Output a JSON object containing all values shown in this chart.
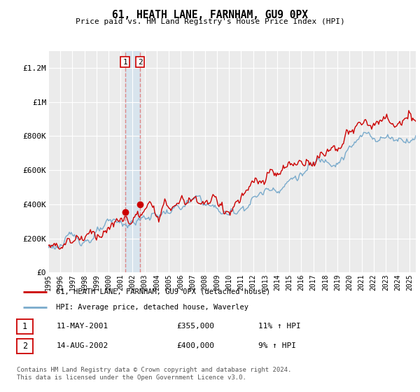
{
  "title": "61, HEATH LANE, FARNHAM, GU9 0PX",
  "subtitle": "Price paid vs. HM Land Registry's House Price Index (HPI)",
  "ylim": [
    0,
    1300000
  ],
  "yticks": [
    0,
    200000,
    400000,
    600000,
    800000,
    1000000,
    1200000
  ],
  "ytick_labels": [
    "£0",
    "£200K",
    "£400K",
    "£600K",
    "£800K",
    "£1M",
    "£1.2M"
  ],
  "background_color": "#ffffff",
  "plot_bg_color": "#ebebeb",
  "grid_color": "#ffffff",
  "legend_line1": "61, HEATH LANE, FARNHAM, GU9 0PX (detached house)",
  "legend_line2": "HPI: Average price, detached house, Waverley",
  "footer1": "Contains HM Land Registry data © Crown copyright and database right 2024.",
  "footer2": "This data is licensed under the Open Government Licence v3.0.",
  "table_row1": [
    "1",
    "11-MAY-2001",
    "£355,000",
    "11% ↑ HPI"
  ],
  "table_row2": [
    "2",
    "14-AUG-2002",
    "£400,000",
    "9% ↑ HPI"
  ],
  "line_color_red": "#cc0000",
  "line_color_blue": "#7aabcc",
  "sale_dot_color": "#cc0000",
  "vline_color": "#dd8888",
  "shade_color": "#cce0f0",
  "x_start_year": 1995,
  "x_end_year": 2025,
  "sale1_year": 2001.37,
  "sale1_price": 355000,
  "sale2_year": 2002.62,
  "sale2_price": 400000
}
